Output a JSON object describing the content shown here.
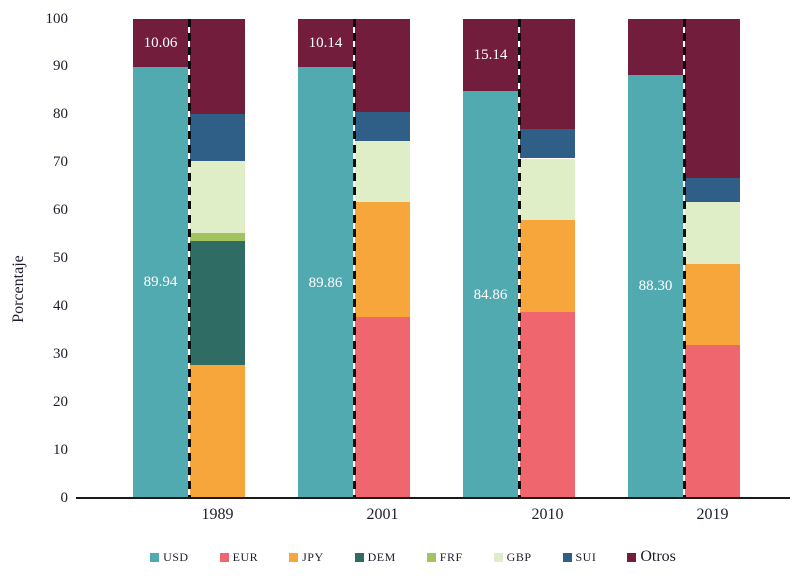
{
  "chart_data": {
    "type": "bar",
    "stacked": true,
    "orientation": "vertical",
    "title": "",
    "ylabel": "Porcentaje",
    "xlabel": "",
    "ylim": [
      0,
      100
    ],
    "yticks": [
      0,
      10,
      20,
      30,
      40,
      50,
      60,
      70,
      80,
      90,
      100
    ],
    "grid": false,
    "legend_position": "bottom",
    "categories": [
      "1989",
      "2001",
      "2010",
      "2019"
    ],
    "legend": [
      "USD",
      "EUR",
      "JPY",
      "DEM",
      "FRF",
      "GBP",
      "SUI",
      "Otros"
    ],
    "colors": {
      "USD": "#52aab1",
      "EUR": "#f0666e",
      "JPY": "#f7a63b",
      "DEM": "#2f6d64",
      "FRF": "#a2c35f",
      "GBP": "#dfeec6",
      "SUI": "#2f5e87",
      "Otros": "#731d3c"
    },
    "groups": [
      {
        "year": "1989",
        "usd_bar": [
          {
            "name": "USD",
            "value": 89.94,
            "label": "89.94"
          },
          {
            "name": "Otros",
            "value": 10.06,
            "label": "10.06"
          }
        ],
        "others_bar": [
          {
            "name": "JPY",
            "value": 27.8
          },
          {
            "name": "DEM",
            "value": 25.7
          },
          {
            "name": "FRF",
            "value": 1.8
          },
          {
            "name": "GBP",
            "value": 15.0
          },
          {
            "name": "SUI",
            "value": 9.7
          },
          {
            "name": "Otros",
            "value": 20.0
          }
        ]
      },
      {
        "year": "2001",
        "usd_bar": [
          {
            "name": "USD",
            "value": 89.86,
            "label": "89.86"
          },
          {
            "name": "Otros",
            "value": 10.14,
            "label": "10.14"
          }
        ],
        "others_bar": [
          {
            "name": "EUR",
            "value": 37.8
          },
          {
            "name": "JPY",
            "value": 23.9
          },
          {
            "name": "GBP",
            "value": 12.7
          },
          {
            "name": "SUI",
            "value": 6.0
          },
          {
            "name": "Otros",
            "value": 19.6
          }
        ]
      },
      {
        "year": "2010",
        "usd_bar": [
          {
            "name": "USD",
            "value": 84.86,
            "label": "84.86"
          },
          {
            "name": "Otros",
            "value": 15.14,
            "label": "15.14"
          }
        ],
        "others_bar": [
          {
            "name": "EUR",
            "value": 38.8
          },
          {
            "name": "JPY",
            "value": 19.1
          },
          {
            "name": "GBP",
            "value": 12.9
          },
          {
            "name": "SUI",
            "value": 6.1
          },
          {
            "name": "Otros",
            "value": 23.1
          }
        ]
      },
      {
        "year": "2019",
        "usd_bar": [
          {
            "name": "USD",
            "value": 88.3,
            "label": "88.30"
          },
          {
            "name": "Otros",
            "value": 11.7,
            "label": null
          }
        ],
        "others_bar": [
          {
            "name": "EUR",
            "value": 32.0
          },
          {
            "name": "JPY",
            "value": 16.8
          },
          {
            "name": "GBP",
            "value": 12.9
          },
          {
            "name": "SUI",
            "value": 5.0
          },
          {
            "name": "Otros",
            "value": 33.3
          }
        ]
      }
    ]
  }
}
